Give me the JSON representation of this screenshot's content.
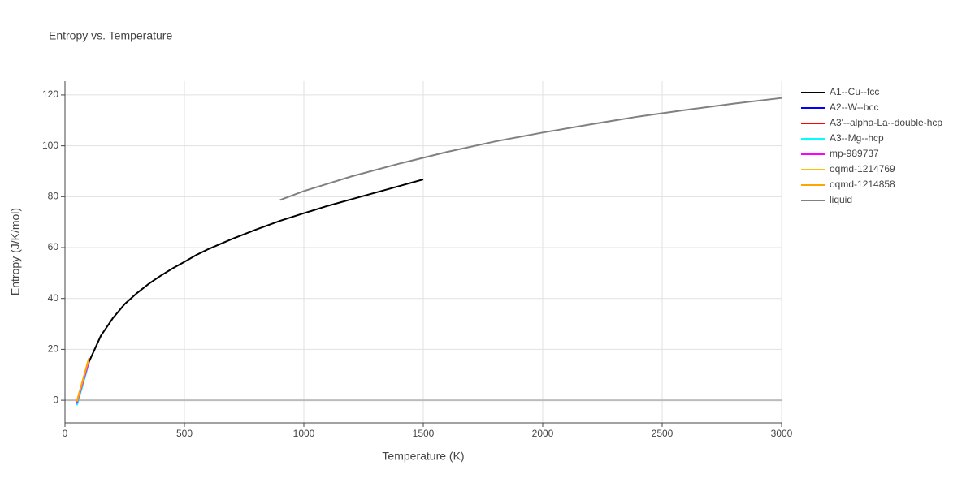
{
  "chart_data": {
    "type": "line",
    "title": "Entropy vs. Temperature",
    "x_label": "Temperature (K)",
    "y_label": "Entropy (J/K/mol)",
    "xlim": [
      0,
      3000
    ],
    "xticks": [
      0,
      500,
      1000,
      1500,
      2000,
      2500,
      3000
    ],
    "ylim": [
      -8.9,
      125.4
    ],
    "yticks": [
      0,
      20,
      40,
      60,
      80,
      100,
      120
    ],
    "grid": true,
    "legend": "right",
    "series": [
      {
        "name": "A1--Cu--fcc",
        "color": "#000000",
        "x": [
          50,
          100,
          150,
          200,
          250,
          300,
          350,
          400,
          450,
          500,
          550,
          600,
          700,
          800,
          900,
          1000,
          1100,
          1200,
          1300,
          1400,
          1500
        ],
        "values": [
          -1,
          15,
          25.3,
          32.2,
          37.8,
          42,
          45.7,
          48.9,
          51.8,
          54.4,
          57.1,
          59.4,
          63.4,
          67.1,
          70.5,
          73.5,
          76.4,
          79,
          81.6,
          84.2,
          86.8
        ]
      },
      {
        "name": "A2--W--bcc",
        "color": "#0000ff",
        "x": [
          50,
          100
        ],
        "values": [
          -1.8,
          14.8
        ]
      },
      {
        "name": "A3'--alpha-La--double-hcp",
        "color": "#ff0000",
        "x": [
          50,
          100
        ],
        "values": [
          -1.5,
          15
        ]
      },
      {
        "name": "A3--Mg--hcp",
        "color": "#00ffff",
        "x": [
          50,
          100
        ],
        "values": [
          -2,
          14.5
        ]
      },
      {
        "name": "mp-989737",
        "color": "#ff00ff",
        "x": [
          50,
          100
        ],
        "values": [
          -1,
          15.2
        ]
      },
      {
        "name": "oqmd-1214769",
        "color": "#ffc000",
        "x": [
          50,
          100
        ],
        "values": [
          -0.5,
          16.5
        ]
      },
      {
        "name": "oqmd-1214858",
        "color": "#ffa500",
        "x": [
          50,
          100
        ],
        "values": [
          -0.3,
          16.3
        ]
      },
      {
        "name": "liquid",
        "color": "#808080",
        "x": [
          900,
          1000,
          1200,
          1400,
          1600,
          1800,
          2000,
          2200,
          2400,
          2600,
          2800,
          3000
        ],
        "values": [
          78.7,
          82.2,
          88,
          93,
          97.6,
          101.7,
          105.2,
          108.4,
          111.5,
          114.1,
          116.6,
          118.8
        ]
      }
    ]
  }
}
